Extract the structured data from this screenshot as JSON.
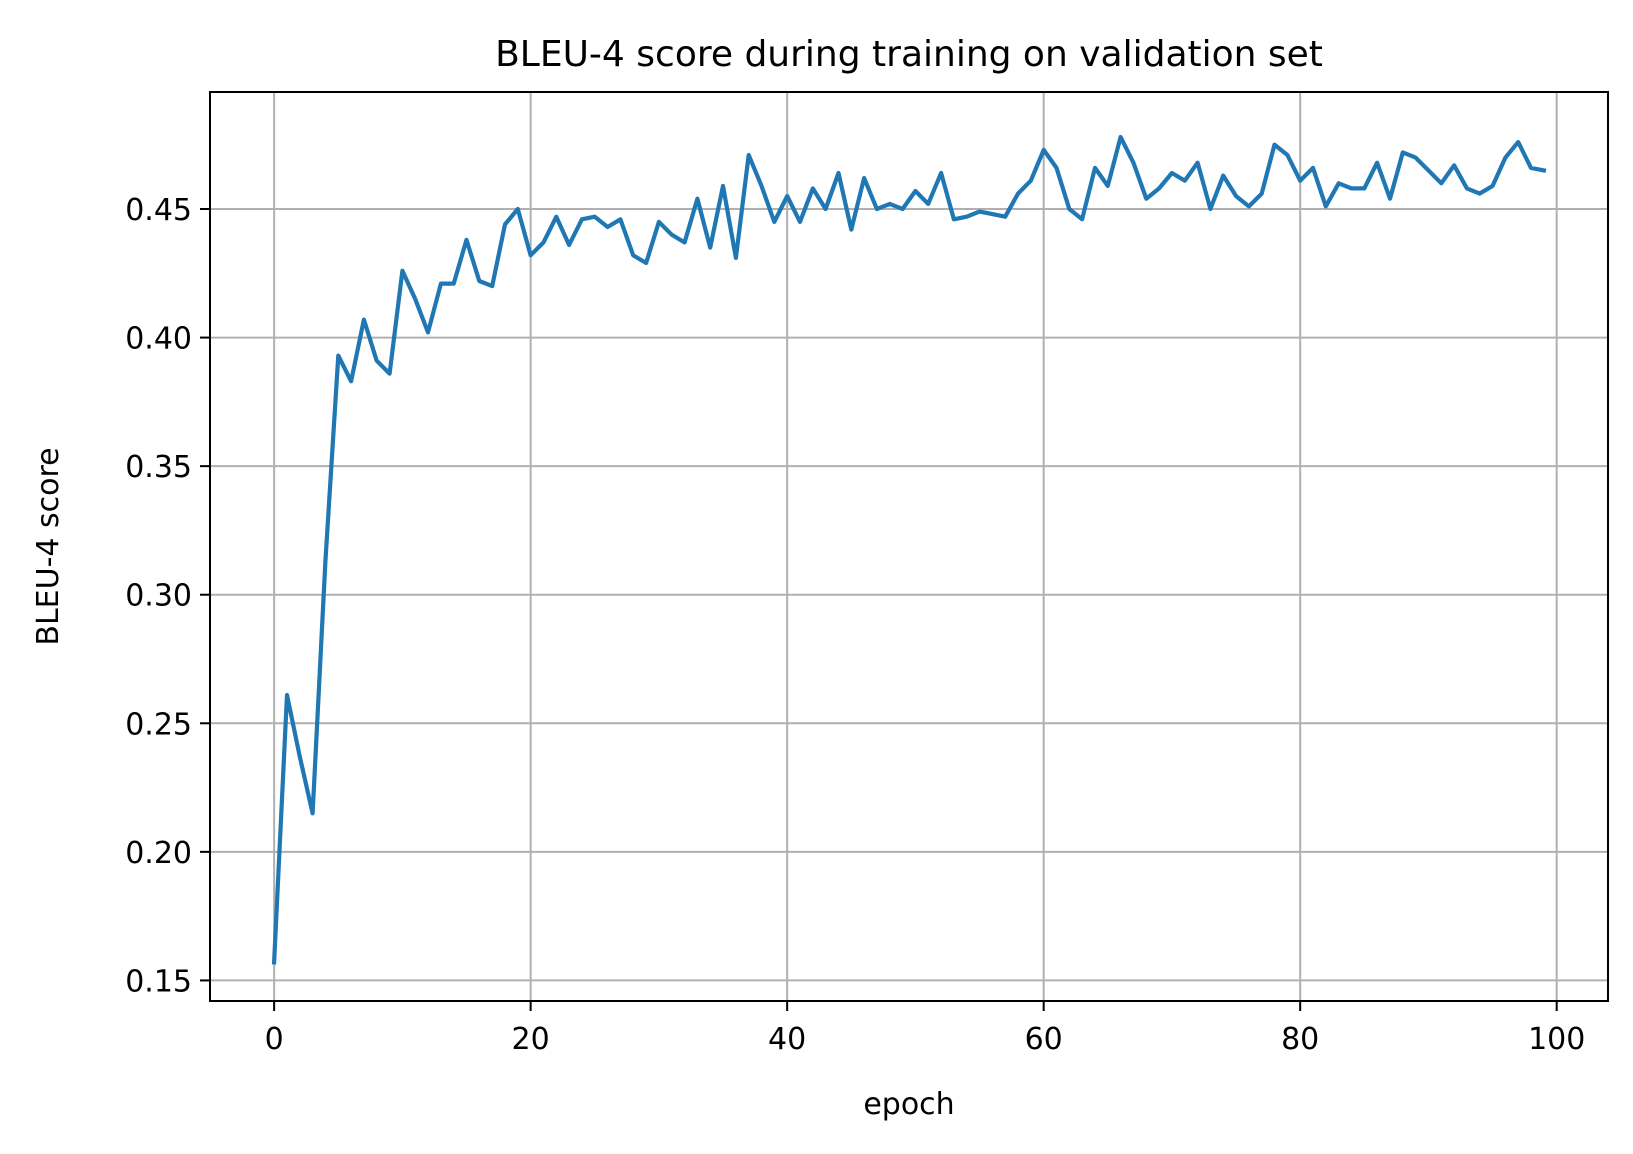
{
  "chart_data": {
    "type": "line",
    "title": "BLEU-4 score during training on validation set",
    "xlabel": "epoch",
    "ylabel": "BLEU-4 score",
    "xlim": [
      -5,
      104
    ],
    "ylim": [
      0.142,
      0.4955
    ],
    "xticks": [
      0,
      20,
      40,
      60,
      80,
      100
    ],
    "xtick_labels": [
      "0",
      "20",
      "40",
      "60",
      "80",
      "100"
    ],
    "yticks": [
      0.15,
      0.2,
      0.25,
      0.3,
      0.35,
      0.4,
      0.45
    ],
    "ytick_labels": [
      "0.15",
      "0.20",
      "0.25",
      "0.30",
      "0.35",
      "0.40",
      "0.45"
    ],
    "grid": true,
    "legend": false,
    "series": [
      {
        "color": "#1f77b4",
        "x": [
          0,
          1,
          2,
          3,
          4,
          5,
          6,
          7,
          8,
          9,
          10,
          11,
          12,
          13,
          14,
          15,
          16,
          17,
          18,
          19,
          20,
          21,
          22,
          23,
          24,
          25,
          26,
          27,
          28,
          29,
          30,
          31,
          32,
          33,
          34,
          35,
          36,
          37,
          38,
          39,
          40,
          41,
          42,
          43,
          44,
          45,
          46,
          47,
          48,
          49,
          50,
          51,
          52,
          53,
          54,
          55,
          56,
          57,
          58,
          59,
          60,
          61,
          62,
          63,
          64,
          65,
          66,
          67,
          68,
          69,
          70,
          71,
          72,
          73,
          74,
          75,
          76,
          77,
          78,
          79,
          80,
          81,
          82,
          83,
          84,
          85,
          86,
          87,
          88,
          89,
          90,
          91,
          92,
          93,
          94,
          95,
          96,
          97,
          98,
          99
        ],
        "values": [
          0.157,
          0.261,
          0.237,
          0.215,
          0.313,
          0.393,
          0.383,
          0.407,
          0.391,
          0.386,
          0.426,
          0.415,
          0.402,
          0.421,
          0.421,
          0.438,
          0.422,
          0.42,
          0.444,
          0.45,
          0.432,
          0.437,
          0.447,
          0.436,
          0.446,
          0.447,
          0.443,
          0.446,
          0.432,
          0.429,
          0.445,
          0.44,
          0.437,
          0.454,
          0.435,
          0.459,
          0.431,
          0.471,
          0.459,
          0.445,
          0.455,
          0.445,
          0.458,
          0.45,
          0.464,
          0.442,
          0.462,
          0.45,
          0.452,
          0.45,
          0.457,
          0.452,
          0.464,
          0.446,
          0.447,
          0.449,
          0.448,
          0.447,
          0.456,
          0.461,
          0.473,
          0.466,
          0.45,
          0.446,
          0.466,
          0.459,
          0.478,
          0.468,
          0.454,
          0.458,
          0.464,
          0.461,
          0.468,
          0.45,
          0.463,
          0.455,
          0.451,
          0.456,
          0.475,
          0.471,
          0.461,
          0.466,
          0.451,
          0.46,
          0.458,
          0.458,
          0.468,
          0.454,
          0.472,
          0.47,
          0.465,
          0.46,
          0.467,
          0.458,
          0.456,
          0.459,
          0.47,
          0.476,
          0.466,
          0.465
        ]
      }
    ]
  }
}
